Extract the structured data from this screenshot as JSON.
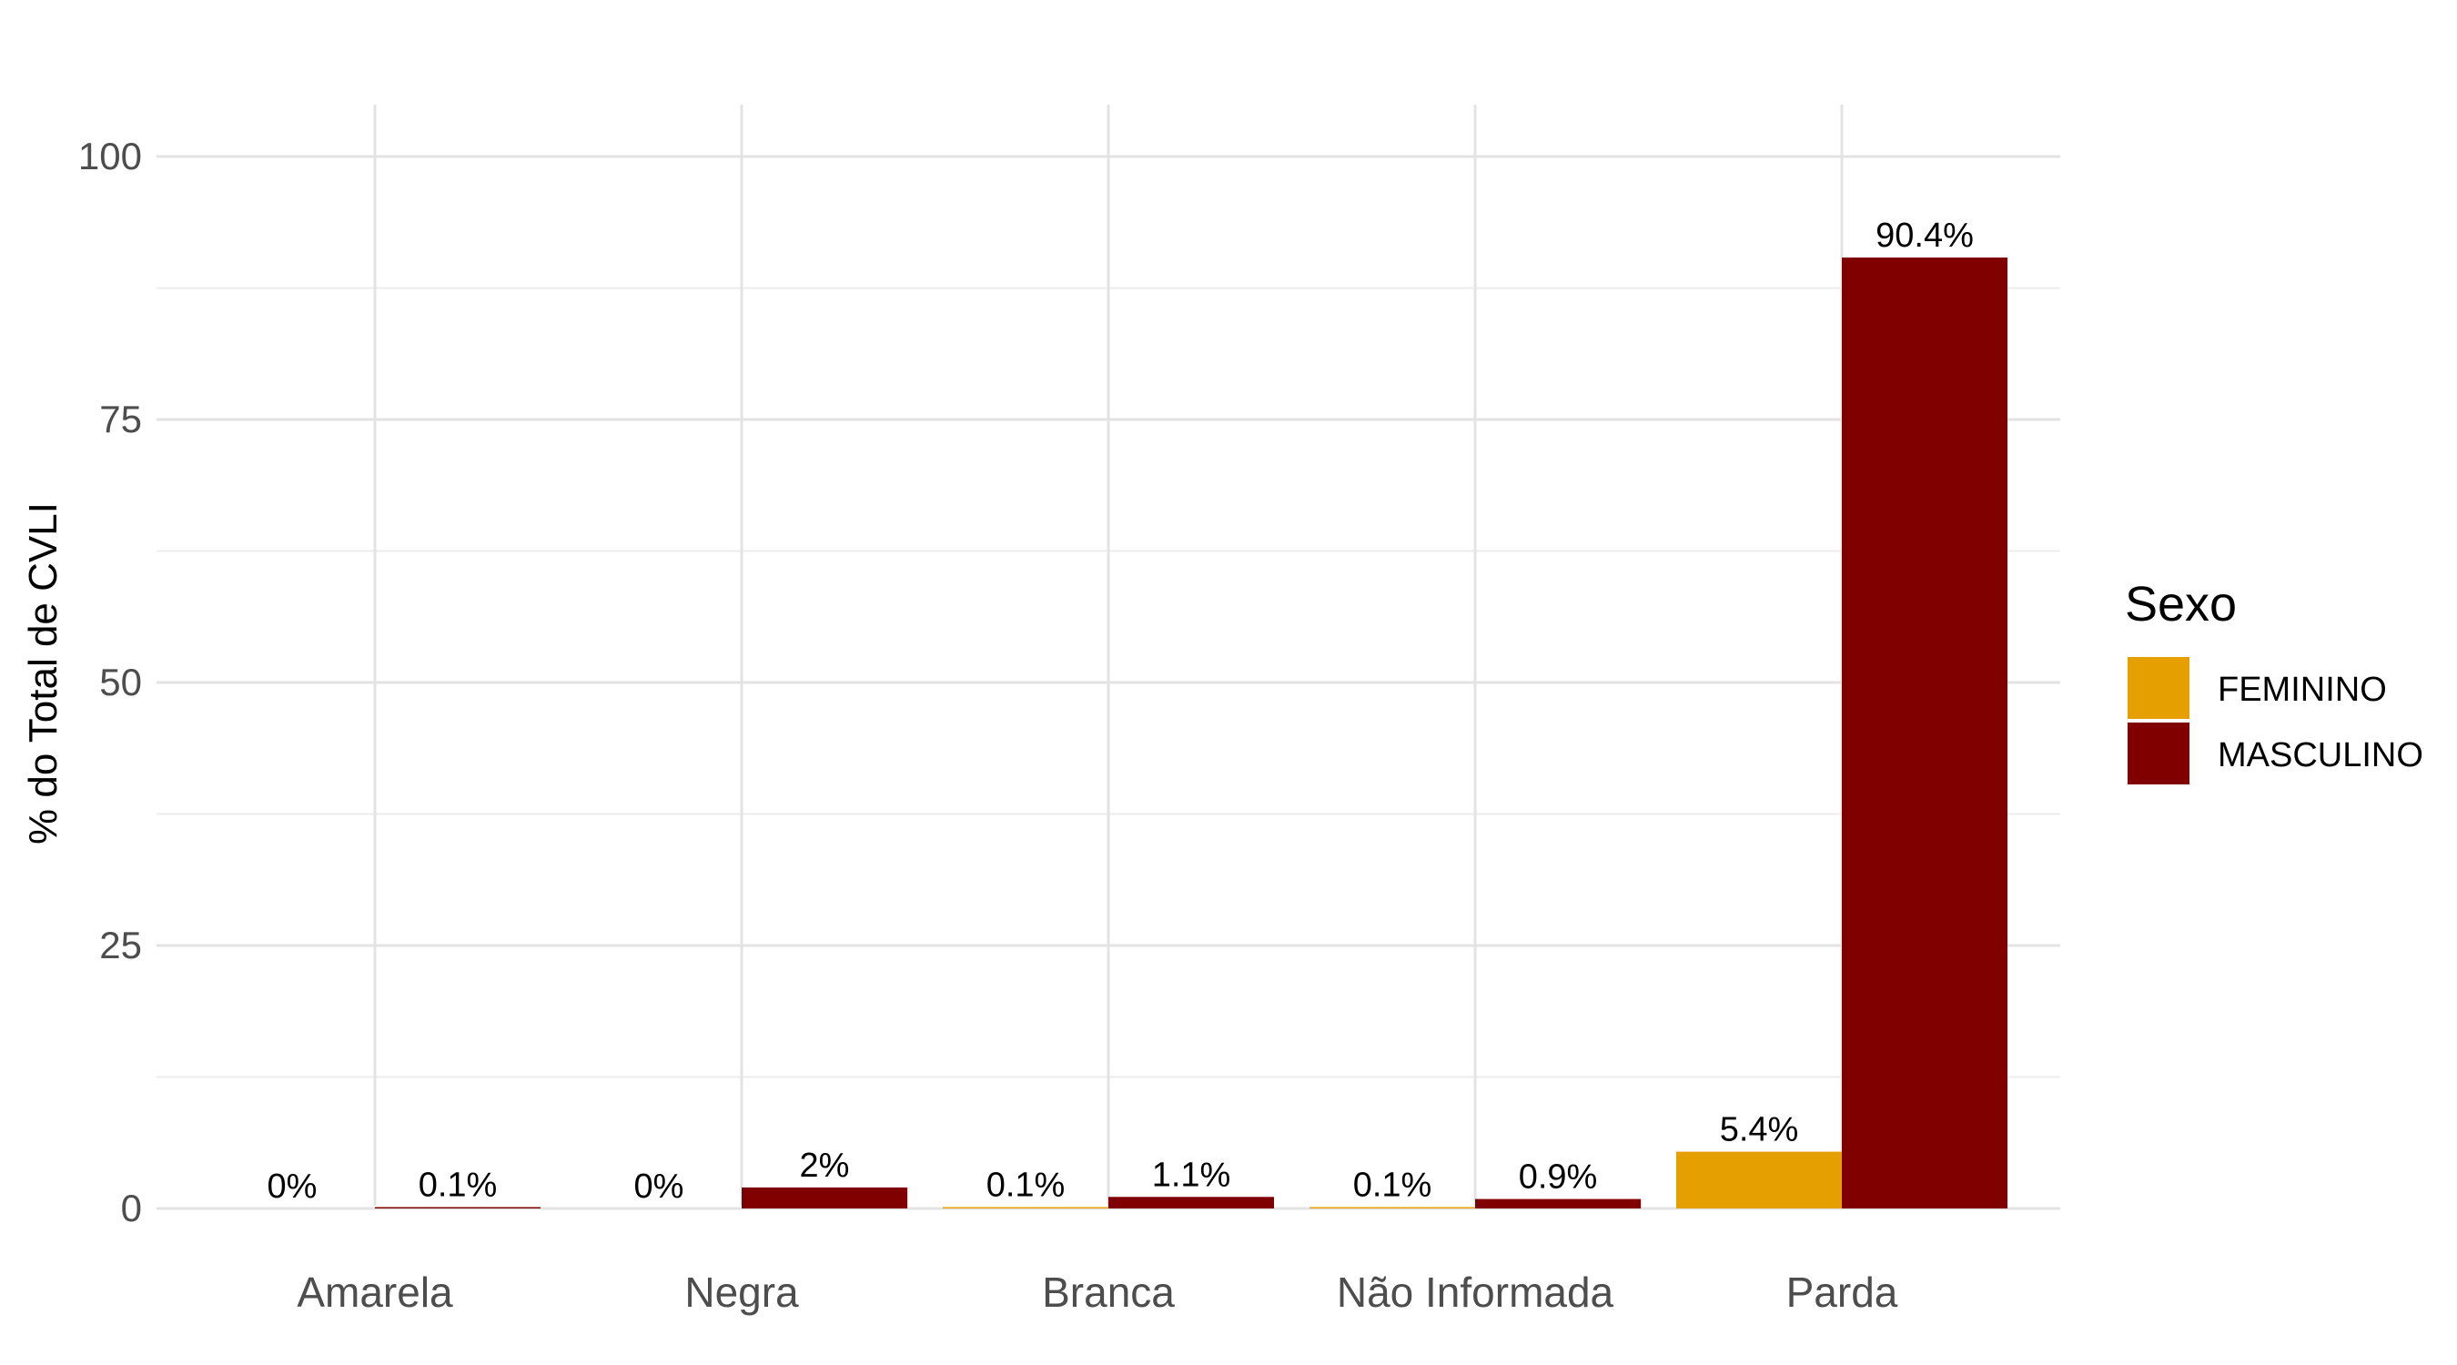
{
  "chart_data": {
    "type": "bar",
    "categories": [
      "Amarela",
      "Negra",
      "Branca",
      "Não Informada",
      "Parda"
    ],
    "series": [
      {
        "name": "FEMININO",
        "color": "#E69F00",
        "values": [
          0,
          0,
          0.1,
          0.1,
          5.4
        ],
        "labels": [
          "0%",
          "0%",
          "0.1%",
          "0.1%",
          "5.4%"
        ]
      },
      {
        "name": "MASCULINO",
        "color": "#800000",
        "values": [
          0.1,
          2,
          1.1,
          0.9,
          90.4
        ],
        "labels": [
          "0.1%",
          "2%",
          "1.1%",
          "0.9%",
          "90.4%"
        ]
      }
    ],
    "title": "",
    "xlabel": "",
    "ylabel": "% do Total de CVLI",
    "ylim": [
      0,
      100
    ],
    "yticks": [
      0,
      25,
      50,
      75,
      100
    ],
    "grid": true,
    "legend": {
      "title": "Sexo",
      "position": "right"
    }
  }
}
